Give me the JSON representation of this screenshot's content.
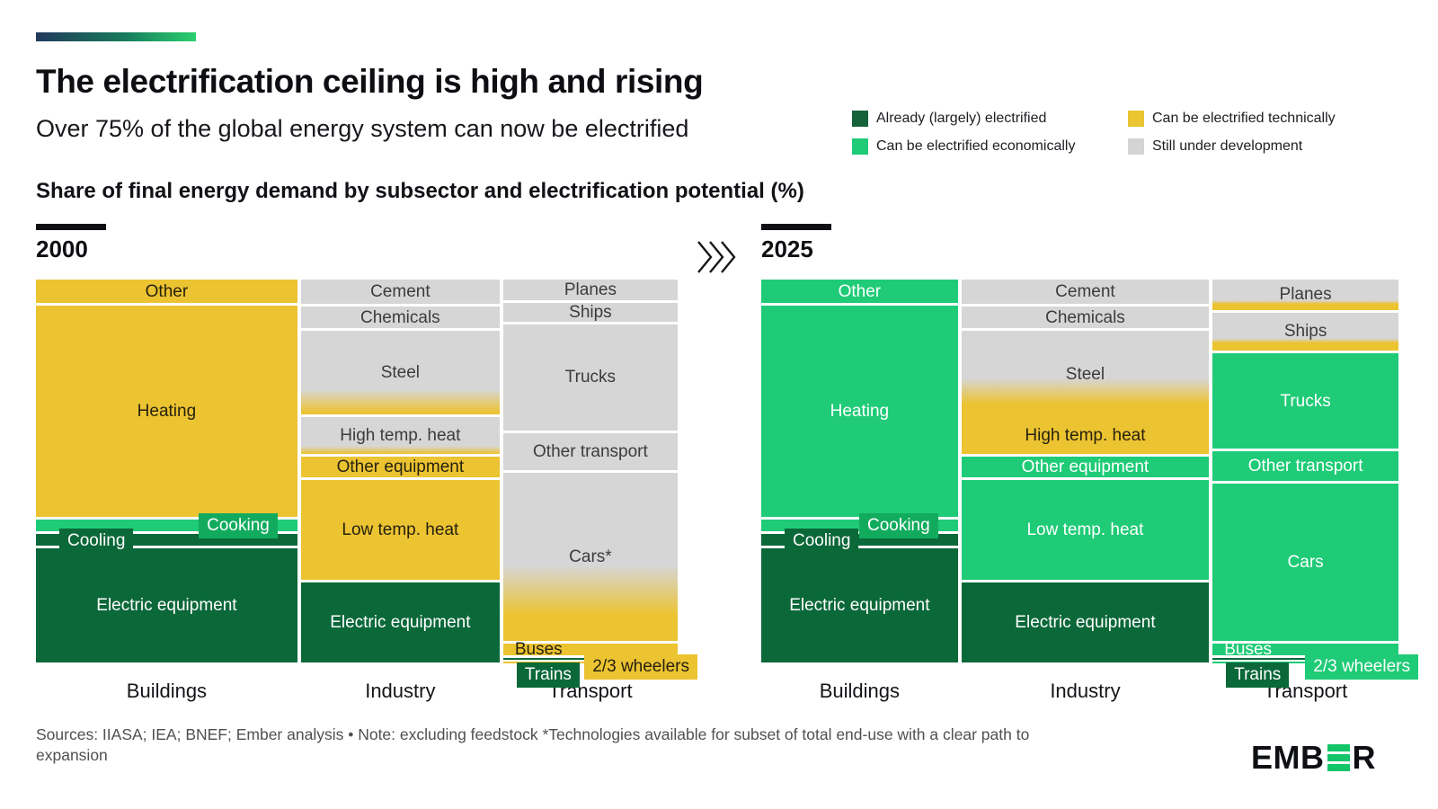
{
  "header": {
    "title": "The electrification ceiling is high and rising",
    "subtitle": "Over 75% of the global energy system can now be electrified"
  },
  "legend": {
    "items": [
      {
        "label": "Already (largely) electrified",
        "status": "already",
        "color": "#15613a"
      },
      {
        "label": "Can be electrified technically",
        "status": "technically",
        "color": "#eac431"
      },
      {
        "label": "Can be electrified economically",
        "status": "economically",
        "color": "#1fcb77"
      },
      {
        "label": "Still under development",
        "status": "development",
        "color": "#d4d4d4"
      }
    ]
  },
  "chart_data": {
    "type": "marimekko",
    "title": "Share of final energy demand by subsector and electrification potential (%)",
    "unit": "% of final energy demand",
    "legend_position": "top-right",
    "transition_icon": "triple-chevron-right",
    "status_colors": {
      "already": "#0b6839",
      "economically": "#1fcb77",
      "technically": "#ecc331",
      "development": "#d6d6d6"
    },
    "charts": [
      {
        "year": "2000",
        "columns": [
          {
            "name": "Buildings",
            "width_pct": 41.2,
            "segments": [
              {
                "label": "Other",
                "value": 6.8,
                "status": "technically"
              },
              {
                "label": "Heating",
                "value": 55.5,
                "status": "technically"
              },
              {
                "label": "Cooking",
                "value": 3.6,
                "status": "economically",
                "label_mode": "tag-right",
                "tag_color": "#12ab5e"
              },
              {
                "label": "Cooling",
                "value": 3.7,
                "status": "already",
                "label_mode": "tag-left"
              },
              {
                "label": "Electric equipment",
                "value": 30.4,
                "status": "already"
              }
            ]
          },
          {
            "name": "Industry",
            "width_pct": 31.3,
            "segments": [
              {
                "label": "Cement",
                "value": 7.0,
                "status": "development"
              },
              {
                "label": "Chemicals",
                "value": 6.3,
                "status": "development"
              },
              {
                "label": "Steel",
                "value": 22.4,
                "status": "development",
                "fade_to": "technically",
                "fade_start": 70,
                "fade_len": 28
              },
              {
                "label": "High temp. heat",
                "value": 10.3,
                "status": "development",
                "fade_to": "technically",
                "fade_start": 78,
                "fade_len": 22
              },
              {
                "label": "Other equipment",
                "value": 6.0,
                "status": "technically"
              },
              {
                "label": "Low temp. heat",
                "value": 26.5,
                "status": "technically"
              },
              {
                "label": "Electric equipment",
                "value": 21.5,
                "status": "already"
              }
            ]
          },
          {
            "name": "Transport",
            "width_pct": 27.5,
            "segments": [
              {
                "label": "Planes",
                "value": 6.0,
                "status": "development"
              },
              {
                "label": "Ships",
                "value": 5.6,
                "status": "development"
              },
              {
                "label": "Trucks",
                "value": 28.2,
                "status": "development"
              },
              {
                "label": "Other transport",
                "value": 10.3,
                "status": "development"
              },
              {
                "label": "Cars*",
                "value": 44.3,
                "status": "development",
                "fade_to": "technically",
                "fade_start": 55,
                "fade_len": 30
              },
              {
                "label": "Buses",
                "value": 3.8,
                "status": "technically",
                "label_mode": "left"
              },
              {
                "label": "Trains",
                "value": 0.8,
                "status": "already",
                "label_mode": "tag-below"
              },
              {
                "label": "2/3 wheelers",
                "value": 1.0,
                "status": "technically",
                "label_mode": "tag-overflow-right"
              }
            ]
          }
        ]
      },
      {
        "year": "2025",
        "columns": [
          {
            "name": "Buildings",
            "width_pct": 31.2,
            "segments": [
              {
                "label": "Other",
                "value": 6.8,
                "status": "economically"
              },
              {
                "label": "Heating",
                "value": 55.5,
                "status": "economically"
              },
              {
                "label": "Cooking",
                "value": 3.6,
                "status": "economically",
                "label_mode": "tag-right",
                "tag_color": "#12ab5e"
              },
              {
                "label": "Cooling",
                "value": 3.7,
                "status": "already",
                "label_mode": "tag-left"
              },
              {
                "label": "Electric equipment",
                "value": 30.4,
                "status": "already"
              }
            ]
          },
          {
            "name": "Industry",
            "width_pct": 39.3,
            "segments": [
              {
                "label": "Cement",
                "value": 7.0,
                "status": "development"
              },
              {
                "label": "Chemicals",
                "value": 6.3,
                "status": "development"
              },
              {
                "label": "Steel",
                "value": 22.4,
                "status": "development",
                "fade_to": "technically",
                "fade_start": 55,
                "fade_len": 30,
                "no_gap": true
              },
              {
                "label": "High temp. heat",
                "value": 10.3,
                "status": "technically"
              },
              {
                "label": "Other equipment",
                "value": 6.0,
                "status": "economically"
              },
              {
                "label": "Low temp. heat",
                "value": 26.5,
                "status": "economically"
              },
              {
                "label": "Electric equipment",
                "value": 21.5,
                "status": "already"
              }
            ]
          },
          {
            "name": "Transport",
            "width_pct": 29.5,
            "segments": [
              {
                "label": "Planes",
                "value": 8.6,
                "status": "development",
                "fade_to": "technically",
                "fade_start": 68,
                "fade_len": 12
              },
              {
                "label": "Ships",
                "value": 10.5,
                "status": "development",
                "fade_to": "technically",
                "fade_start": 68,
                "fade_len": 12
              },
              {
                "label": "Trucks",
                "value": 25.5,
                "status": "economically"
              },
              {
                "label": "Other transport",
                "value": 8.4,
                "status": "economically"
              },
              {
                "label": "Cars",
                "value": 41.4,
                "status": "economically"
              },
              {
                "label": "Buses",
                "value": 3.8,
                "status": "economically",
                "label_mode": "left"
              },
              {
                "label": "Trains",
                "value": 0.8,
                "status": "already",
                "label_mode": "tag-below"
              },
              {
                "label": "2/3 wheelers",
                "value": 1.0,
                "status": "economically",
                "label_mode": "tag-overflow-right"
              }
            ]
          }
        ]
      }
    ]
  },
  "footer": {
    "note": "Sources: IIASA; IEA; BNEF; Ember analysis • Note: excluding feedstock *Technologies available for subset of total end-use with a clear path to expansion",
    "logo": {
      "left": "EMB",
      "right": "R"
    }
  }
}
